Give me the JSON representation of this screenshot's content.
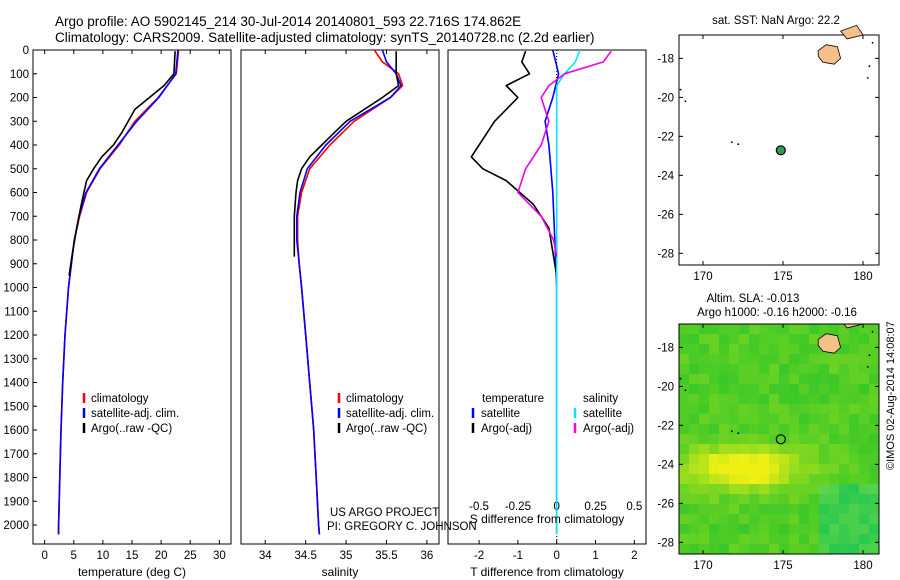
{
  "header": {
    "title_line1": "Argo profile: AO 5902145_214 30-Jul-2014 20140801_593 22.716S 174.862E",
    "title_line2": "Climatology: CARS2009. Satellite-adjusted climatology: synTS_20140728.nc (2.2d earlier)"
  },
  "colors": {
    "climatology": "#ff0000",
    "satellite": "#0000ff",
    "argo": "#000000",
    "salinity_satellite": "#00e5ff",
    "salinity_argo": "#ee00ee",
    "land": "#f5c08a"
  },
  "chart_data": [
    {
      "id": "temperature",
      "type": "line",
      "xlabel": "temperature (deg C)",
      "ylabel": "",
      "xlim": [
        -2,
        32
      ],
      "ylim": [
        2080,
        0
      ],
      "xticks": [
        0,
        5,
        10,
        15,
        20,
        25,
        30
      ],
      "xtick_labels": [
        "0",
        "5",
        "10",
        "15",
        "20",
        "25",
        "30"
      ],
      "yticks": [
        0,
        100,
        200,
        300,
        400,
        500,
        600,
        700,
        800,
        900,
        1000,
        1100,
        1200,
        1300,
        1400,
        1500,
        1600,
        1700,
        1800,
        1900,
        2000
      ],
      "ytick_labels": [
        "0",
        "100",
        "200",
        "300",
        "400",
        "500",
        "600",
        "700",
        "800",
        "900",
        "1000",
        "1100",
        "1200",
        "1300",
        "1400",
        "1500",
        "1600",
        "1700",
        "1800",
        "1900",
        "2000"
      ],
      "legend": [
        "climatology",
        "satellite-adj. clim.",
        "Argo(..raw -QC)"
      ],
      "series": [
        {
          "name": "climatology",
          "color": "#ff0000",
          "depth": [
            0,
            100,
            200,
            300,
            400,
            500,
            600,
            700,
            800,
            1000,
            1200,
            1400,
            1600,
            1800,
            2000,
            2040
          ],
          "values": [
            23.0,
            22.6,
            19.5,
            15.5,
            12.8,
            9.5,
            7.2,
            6.0,
            5.1,
            4.1,
            3.5,
            3.1,
            2.8,
            2.6,
            2.4,
            2.4
          ]
        },
        {
          "name": "satellite-adj. clim.",
          "color": "#0000ff",
          "depth": [
            0,
            100,
            200,
            300,
            400,
            500,
            600,
            700,
            800,
            1000,
            1200,
            1400,
            1600,
            1800,
            2000,
            2040
          ],
          "values": [
            22.9,
            22.5,
            19.6,
            15.8,
            12.6,
            9.4,
            7.1,
            5.9,
            5.1,
            4.1,
            3.5,
            3.1,
            2.8,
            2.6,
            2.4,
            2.4
          ]
        },
        {
          "name": "Argo(..raw -QC)",
          "color": "#000000",
          "depth": [
            5,
            100,
            150,
            250,
            350,
            400,
            450,
            500,
            550,
            650,
            750,
            850,
            950
          ],
          "values": [
            22.4,
            22.2,
            20.5,
            15.5,
            13.2,
            11.8,
            9.8,
            8.4,
            7.2,
            6.3,
            5.5,
            4.8,
            4.2
          ]
        }
      ]
    },
    {
      "id": "salinity",
      "type": "line",
      "xlabel": "salinity",
      "xlim": [
        33.7,
        36.15
      ],
      "ylim": [
        2080,
        0
      ],
      "xticks": [
        34,
        34.5,
        35,
        35.5,
        36
      ],
      "xtick_labels": [
        "34",
        "34.5",
        "35",
        "35.5",
        "36"
      ],
      "legend": [
        "climatology",
        "satellite-adj. clim.",
        "Argo(..raw -QC)"
      ],
      "annotation": [
        "US ARGO PROJECT",
        "PI: GREGORY C. JOHNSON"
      ],
      "series": [
        {
          "name": "climatology",
          "color": "#ff0000",
          "depth": [
            0,
            50,
            100,
            150,
            200,
            300,
            400,
            500,
            600,
            700,
            800,
            900,
            1000,
            1200,
            1400,
            1600,
            1800,
            2000,
            2040
          ],
          "values": [
            35.35,
            35.45,
            35.65,
            35.7,
            35.55,
            35.1,
            34.8,
            34.55,
            34.45,
            34.4,
            34.4,
            34.42,
            34.45,
            34.5,
            34.55,
            34.6,
            34.63,
            34.66,
            34.67
          ]
        },
        {
          "name": "satellite-adj. clim.",
          "color": "#0000ff",
          "depth": [
            0,
            50,
            100,
            150,
            200,
            300,
            400,
            500,
            600,
            700,
            800,
            900,
            1000,
            1200,
            1400,
            1600,
            1800,
            2000,
            2040
          ],
          "values": [
            35.45,
            35.5,
            35.62,
            35.68,
            35.55,
            35.05,
            34.75,
            34.52,
            34.43,
            34.39,
            34.39,
            34.42,
            34.45,
            34.5,
            34.55,
            34.6,
            34.63,
            34.66,
            34.67
          ]
        },
        {
          "name": "Argo(..raw -QC)",
          "color": "#000000",
          "depth": [
            5,
            100,
            150,
            200,
            300,
            350,
            400,
            450,
            500,
            550,
            600,
            700,
            800,
            870
          ],
          "values": [
            35.62,
            35.62,
            35.65,
            35.45,
            35.0,
            34.85,
            34.7,
            34.55,
            34.45,
            34.4,
            34.38,
            34.36,
            34.36,
            34.36
          ]
        }
      ]
    },
    {
      "id": "difference",
      "type": "line",
      "xlabel": "T difference from climatology",
      "top_label": "S difference from climatology",
      "xlim": [
        -2.8,
        2.3
      ],
      "ylim": [
        2080,
        0
      ],
      "xticks": [
        -2,
        -1,
        0,
        1,
        2
      ],
      "xtick_labels": [
        "-2",
        "-1",
        "0",
        "1",
        "2"
      ],
      "sticks": [
        -0.5,
        -0.25,
        0,
        0.25,
        0.5
      ],
      "stick_labels": [
        "-0.5",
        "-0.25",
        "0",
        "0.25",
        "0.5"
      ],
      "legend_groups": [
        {
          "title": "temperature",
          "items": [
            "satellite",
            "Argo(-adj)"
          ]
        },
        {
          "title": "salinity",
          "items": [
            "satellite",
            "Argo(-adj)"
          ]
        }
      ],
      "series": [
        {
          "name": "temperature satellite",
          "color": "#0000ff",
          "depth": [
            0,
            100,
            200,
            300,
            400,
            500,
            600,
            800,
            1000,
            1200,
            1500,
            2040
          ],
          "values": [
            -0.1,
            0.05,
            -0.1,
            -0.3,
            -0.2,
            -0.15,
            -0.1,
            -0.05,
            0,
            0,
            0,
            0
          ]
        },
        {
          "name": "temperature Argo(-adj)",
          "color": "#000000",
          "depth": [
            5,
            50,
            100,
            150,
            200,
            300,
            400,
            450,
            500,
            550,
            650,
            750,
            850,
            950
          ],
          "values": [
            -0.8,
            -0.9,
            -0.7,
            -1.3,
            -1.0,
            -1.6,
            -2.0,
            -2.2,
            -1.9,
            -1.3,
            -0.6,
            -0.2,
            -0.1,
            0
          ]
        },
        {
          "name": "salinity satellite",
          "color": "#00e5ff",
          "depth": [
            0,
            50,
            100,
            150,
            200,
            300,
            400,
            600,
            800,
            1000,
            1500,
            2040
          ],
          "values": [
            0.15,
            0.12,
            0.05,
            0.0,
            0.0,
            0.0,
            0.0,
            0.0,
            0.0,
            0.0,
            0.0,
            0.0
          ]
        },
        {
          "name": "salinity Argo(-adj)",
          "color": "#ee00ee",
          "depth": [
            5,
            50,
            100,
            150,
            200,
            300,
            400,
            500,
            600,
            700,
            800,
            870
          ],
          "values": [
            0.35,
            0.3,
            0.05,
            -0.05,
            -0.1,
            -0.05,
            -0.1,
            -0.2,
            -0.25,
            -0.1,
            -0.02,
            0
          ]
        }
      ]
    },
    {
      "id": "sst_map",
      "type": "map",
      "title": "sat. SST: NaN Argo: 22.2",
      "xlim": [
        168.5,
        181
      ],
      "ylim": [
        -28.6,
        -16.8
      ],
      "xticks": [
        170,
        175,
        180
      ],
      "yticks": [
        -18,
        -20,
        -22,
        -24,
        -26,
        -28
      ],
      "float_position": [
        174.862,
        -22.716
      ]
    },
    {
      "id": "sla_map",
      "type": "map",
      "title": "Altim. SLA: -0.013",
      "subtitle": "Argo h1000: -0.16 h2000: -0.16",
      "xlim": [
        168.5,
        181
      ],
      "ylim": [
        -28.6,
        -16.8
      ],
      "xticks": [
        170,
        175,
        180
      ],
      "yticks": [
        -18,
        -20,
        -22,
        -24,
        -26,
        -28
      ],
      "float_position": [
        174.862,
        -22.716
      ]
    }
  ],
  "side_label": "©IMOS 02-Aug-2014 14:08:07"
}
